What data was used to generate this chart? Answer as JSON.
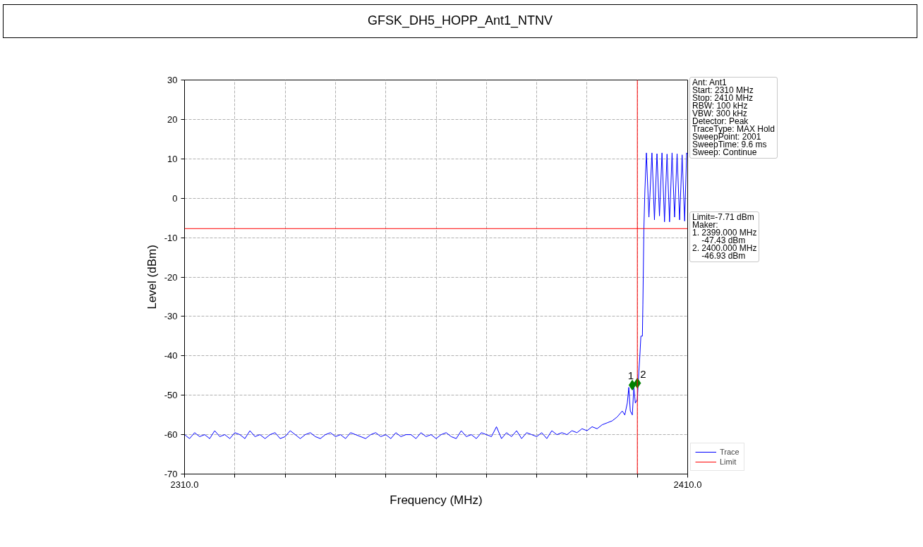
{
  "chart_data": {
    "type": "line",
    "title": "GFSK_DH5_HOPP_Ant1_NTNV",
    "xlabel": "Frequency (MHz)",
    "ylabel": "Level (dBm)",
    "xlim": [
      2310,
      2410
    ],
    "ylim": [
      -70,
      30
    ],
    "xticks": [
      {
        "value": 2310,
        "label": "2310.0"
      },
      {
        "value": 2320,
        "label": null
      },
      {
        "value": 2330,
        "label": null
      },
      {
        "value": 2340,
        "label": null
      },
      {
        "value": 2350,
        "label": null
      },
      {
        "value": 2360,
        "label": null
      },
      {
        "value": 2370,
        "label": null
      },
      {
        "value": 2380,
        "label": null
      },
      {
        "value": 2390,
        "label": null
      },
      {
        "value": 2400,
        "label": null
      },
      {
        "value": 2410,
        "label": "2410.0"
      }
    ],
    "yticks": [
      -70,
      -60,
      -50,
      -40,
      -30,
      -20,
      -10,
      0,
      10,
      20,
      30
    ],
    "grid": true,
    "legend": "bottom right",
    "annotations": [
      "Ant: Ant1\nStart: 2310 MHz\nStop: 2410 MHz\nRBW: 100 kHz\nVBW: 300 kHz\nDetector: Peak\nTraceType: MAX Hold\nSweepPoint: 2001\nSweepTime: 9.6 ms\nSweep: Continue",
      "Limit=-7.71 dBm\nMaker:\n1. 2399.000 MHz\n    -47.43 dBm\n2. 2400.000 MHz\n    -46.93 dBm",
      {
        "text": "1",
        "x": 2399,
        "y": -47.43
      },
      {
        "text": "2",
        "x": 2400,
        "y": -46.93
      }
    ],
    "ref_lines": [
      {
        "axis": "y",
        "value": -7.71,
        "label": "Limit",
        "color": "#ff0000"
      },
      {
        "axis": "x",
        "value": 2400,
        "color": "#ff0000"
      }
    ],
    "series": [
      {
        "name": "Trace",
        "color": "#0000ff",
        "x": [
          2310,
          2311,
          2312,
          2313,
          2314,
          2315,
          2316,
          2317,
          2318,
          2319,
          2320,
          2321,
          2322,
          2323,
          2324,
          2325,
          2326,
          2327,
          2328,
          2329,
          2330,
          2331,
          2332,
          2333,
          2334,
          2335,
          2336,
          2337,
          2338,
          2339,
          2340,
          2341,
          2342,
          2343,
          2344,
          2345,
          2346,
          2347,
          2348,
          2349,
          2350,
          2351,
          2352,
          2353,
          2354,
          2355,
          2356,
          2357,
          2358,
          2359,
          2360,
          2361,
          2362,
          2363,
          2364,
          2365,
          2366,
          2367,
          2368,
          2369,
          2370,
          2371,
          2372,
          2373,
          2374,
          2375,
          2376,
          2377,
          2378,
          2379,
          2380,
          2381,
          2382,
          2383,
          2384,
          2385,
          2386,
          2387,
          2388,
          2389,
          2390,
          2391,
          2392,
          2393,
          2394,
          2395,
          2396,
          2397,
          2397.5,
          2398,
          2398.3,
          2398.6,
          2399,
          2399.3,
          2399.6,
          2400,
          2400.3,
          2400.5,
          2400.7,
          2401.0,
          2401.1,
          2401.3,
          2401.5,
          2401.8,
          2402.3,
          2402.9,
          2403.4,
          2403.9,
          2404.4,
          2404.9,
          2405.4,
          2405.9,
          2406.4,
          2406.9,
          2407.4,
          2407.9,
          2408.4,
          2408.9,
          2409.4,
          2409.8,
          2410
        ],
        "values": [
          -60,
          -61,
          -59.5,
          -60.5,
          -60,
          -61,
          -59,
          -60.5,
          -60,
          -61,
          -59.5,
          -60,
          -61,
          -59,
          -60.5,
          -60,
          -61,
          -60,
          -59.5,
          -61,
          -60.5,
          -59,
          -60,
          -61,
          -60,
          -59.5,
          -60.5,
          -61,
          -60,
          -59.5,
          -60.5,
          -60,
          -61,
          -59.5,
          -60,
          -60.5,
          -61,
          -60,
          -59.5,
          -60.5,
          -60,
          -61,
          -59.5,
          -60.5,
          -60,
          -60,
          -61,
          -59.5,
          -60.5,
          -60,
          -61,
          -60,
          -59.5,
          -60.5,
          -61,
          -59,
          -60.5,
          -60,
          -61,
          -59.5,
          -60,
          -60.5,
          -58,
          -61,
          -59.5,
          -60.5,
          -59,
          -61,
          -59.5,
          -60,
          -60.5,
          -59.5,
          -61,
          -59,
          -60,
          -59.5,
          -60,
          -59,
          -59.5,
          -58.5,
          -59,
          -58,
          -58.5,
          -57.5,
          -57,
          -56.5,
          -55.5,
          -54,
          -55,
          -52,
          -48,
          -54,
          -55,
          -48,
          -52,
          -51,
          -44,
          -40,
          -35,
          -35,
          -27,
          -7.7,
          2,
          11.5,
          -4.8,
          11.5,
          -5.5,
          11.3,
          -4.5,
          11.5,
          -6,
          11.2,
          -6,
          11.5,
          -4.8,
          11.3,
          -5.5,
          11,
          -5.8,
          11.5,
          11
        ]
      },
      {
        "type": "scatter",
        "color": "#008000",
        "marker": "diamond",
        "x": [
          2399,
          2400
        ],
        "values": [
          -47.43,
          -46.93
        ]
      }
    ]
  }
}
